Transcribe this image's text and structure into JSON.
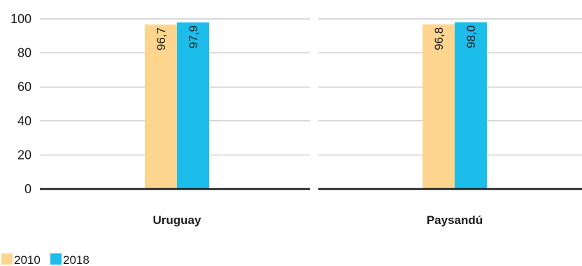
{
  "chart_data": {
    "type": "bar",
    "categories": [
      "Uruguay",
      "Paysandú"
    ],
    "series": [
      {
        "name": "2010",
        "values": [
          96.7,
          96.8
        ],
        "labels": [
          "96,7",
          "96,8"
        ],
        "color": "#FDD58F"
      },
      {
        "name": "2018",
        "values": [
          97.9,
          98.0
        ],
        "labels": [
          "97,9",
          "98,0"
        ],
        "color": "#1DBDEB"
      }
    ],
    "ylim": [
      0,
      100
    ],
    "yticks": [
      0,
      20,
      40,
      60,
      80,
      100
    ],
    "ytick_labels": [
      "0",
      "20",
      "40",
      "60",
      "80",
      "100"
    ],
    "grid": true,
    "legend_position": "bottom-left",
    "data_label_orientation": "vertical",
    "colors": {
      "grid": "#b3b3b3",
      "baseline": "#1a1a1a",
      "text": "#1a1a1a"
    }
  }
}
